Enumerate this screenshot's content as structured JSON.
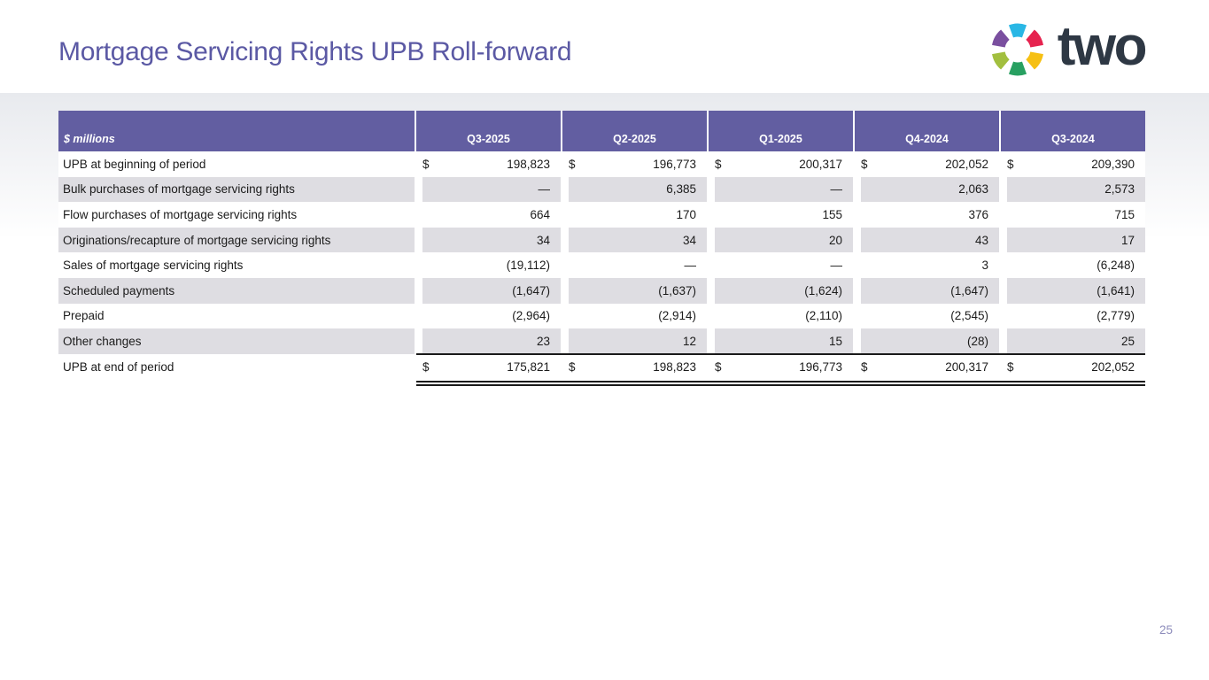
{
  "slide": {
    "title": "Mortgage Servicing Rights UPB Roll-forward",
    "page_number": "25"
  },
  "logo": {
    "text": "two",
    "segments": [
      {
        "name": "top",
        "color": "#29b7e5"
      },
      {
        "name": "upper-right",
        "color": "#e6234f"
      },
      {
        "name": "lower-right",
        "color": "#f6c013"
      },
      {
        "name": "bottom",
        "color": "#28a061"
      },
      {
        "name": "lower-left",
        "color": "#a2bf3f"
      },
      {
        "name": "upper-left",
        "color": "#7a4f9f"
      }
    ]
  },
  "table": {
    "unit_label": "$ millions",
    "currency_symbol": "$",
    "columns": [
      "Q3-2025",
      "Q2-2025",
      "Q1-2025",
      "Q4-2024",
      "Q3-2024"
    ],
    "rows": [
      {
        "label": "UPB at beginning of period",
        "dollar": true,
        "values": [
          "198,823",
          "196,773",
          "200,317",
          "202,052",
          "209,390"
        ]
      },
      {
        "label": "Bulk purchases of mortgage servicing rights",
        "values": [
          "—",
          "6,385",
          "—",
          "2,063",
          "2,573"
        ]
      },
      {
        "label": "Flow purchases of mortgage servicing rights",
        "values": [
          "664",
          "170",
          "155",
          "376",
          "715"
        ]
      },
      {
        "label": "Originations/recapture of mortgage servicing rights",
        "values": [
          "34",
          "34",
          "20",
          "43",
          "17"
        ]
      },
      {
        "label": "Sales of mortgage servicing rights",
        "values": [
          "(19,112)",
          "—",
          "—",
          "3",
          "(6,248)"
        ]
      },
      {
        "label": "Scheduled payments",
        "values": [
          "(1,647)",
          "(1,637)",
          "(1,624)",
          "(1,647)",
          "(1,641)"
        ]
      },
      {
        "label": "Prepaid",
        "values": [
          "(2,964)",
          "(2,914)",
          "(2,110)",
          "(2,545)",
          "(2,779)"
        ]
      },
      {
        "label": "Other changes",
        "values": [
          "23",
          "12",
          "15",
          "(28)",
          "25"
        ]
      },
      {
        "label": "UPB at end of period",
        "dollar": true,
        "total": true,
        "values": [
          "175,821",
          "198,823",
          "196,773",
          "200,317",
          "202,052"
        ]
      }
    ]
  },
  "colors": {
    "header_bg": "#625ea1",
    "stripe": "#dedde2",
    "title": "#5b59a4",
    "text": "#1b1b1b",
    "rule": "#1a1a1a",
    "page_num": "#8d8cbb",
    "logo_text": "#2e3844",
    "grad_top": "#e8eaee"
  }
}
